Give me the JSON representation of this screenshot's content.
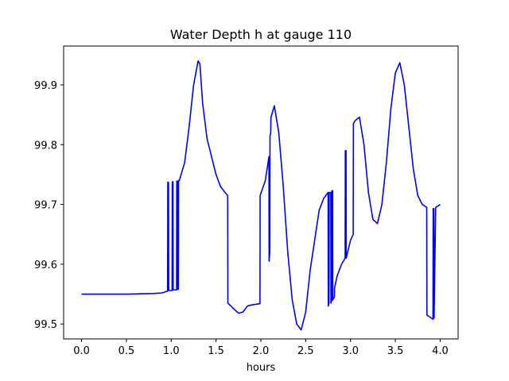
{
  "chart_data": {
    "type": "line",
    "title": "Water Depth h at gauge 110",
    "xlabel": "hours",
    "ylabel": "",
    "xlim": [
      -0.2,
      4.2
    ],
    "ylim": [
      99.475,
      99.965
    ],
    "xticks": [
      0.0,
      0.5,
      1.0,
      1.5,
      2.0,
      2.5,
      3.0,
      3.5,
      4.0
    ],
    "xtick_labels": [
      "0.0",
      "0.5",
      "1.0",
      "1.5",
      "2.0",
      "2.5",
      "3.0",
      "3.5",
      "4.0"
    ],
    "yticks": [
      99.5,
      99.6,
      99.7,
      99.8,
      99.9
    ],
    "ytick_labels": [
      "99.5",
      "99.6",
      "99.7",
      "99.8",
      "99.9"
    ],
    "grid": false,
    "colors": {
      "line": "#0000ff",
      "axes": "#000000",
      "background": "#ffffff"
    },
    "series": [
      {
        "x": [
          0.0,
          0.5,
          0.8,
          0.9,
          0.96,
          0.962,
          0.97,
          0.972,
          1.01,
          1.012,
          1.02,
          1.022,
          1.06,
          1.062,
          1.07,
          1.072,
          1.08,
          1.082,
          1.09,
          1.1,
          1.15,
          1.2,
          1.25,
          1.3,
          1.32,
          1.35,
          1.4,
          1.45,
          1.5,
          1.55,
          1.6,
          1.63,
          1.632,
          1.7,
          1.75,
          1.8,
          1.85,
          1.9,
          1.95,
          1.99,
          1.992,
          2.05,
          2.09,
          2.092,
          2.1,
          2.102,
          2.11,
          2.112,
          2.15,
          2.2,
          2.25,
          2.3,
          2.35,
          2.4,
          2.45,
          2.5,
          2.55,
          2.6,
          2.65,
          2.7,
          2.75,
          2.752,
          2.76,
          2.762,
          2.78,
          2.782,
          2.79,
          2.792,
          2.8,
          2.802,
          2.82,
          2.822,
          2.85,
          2.9,
          2.94,
          2.942,
          2.95,
          2.952,
          2.96,
          3.0,
          3.03,
          3.032,
          3.05,
          3.1,
          3.15,
          3.2,
          3.25,
          3.3,
          3.35,
          3.4,
          3.45,
          3.5,
          3.55,
          3.6,
          3.65,
          3.7,
          3.75,
          3.8,
          3.85,
          3.852,
          3.9,
          3.92,
          3.922,
          3.93,
          3.932,
          3.95,
          3.952,
          4.0
        ],
        "y": [
          99.55,
          99.55,
          99.551,
          99.552,
          99.555,
          99.737,
          99.737,
          99.556,
          99.556,
          99.738,
          99.738,
          99.557,
          99.557,
          99.739,
          99.739,
          99.558,
          99.558,
          99.74,
          99.74,
          99.745,
          99.77,
          99.83,
          99.9,
          99.94,
          99.935,
          99.87,
          99.81,
          99.78,
          99.75,
          99.73,
          99.72,
          99.715,
          99.535,
          99.525,
          99.518,
          99.52,
          99.53,
          99.532,
          99.533,
          99.534,
          99.715,
          99.74,
          99.78,
          99.605,
          99.62,
          99.815,
          99.82,
          99.845,
          99.865,
          99.82,
          99.73,
          99.62,
          99.54,
          99.5,
          99.49,
          99.52,
          99.59,
          99.64,
          99.69,
          99.71,
          99.72,
          99.53,
          99.535,
          99.72,
          99.72,
          99.535,
          99.54,
          99.723,
          99.723,
          99.54,
          99.545,
          99.56,
          99.58,
          99.6,
          99.61,
          99.79,
          99.79,
          99.61,
          99.615,
          99.64,
          99.65,
          99.835,
          99.84,
          99.846,
          99.8,
          99.72,
          99.675,
          99.668,
          99.7,
          99.77,
          99.86,
          99.92,
          99.937,
          99.9,
          99.83,
          99.76,
          99.715,
          99.7,
          99.695,
          99.515,
          99.51,
          99.508,
          99.693,
          99.693,
          99.51,
          99.695,
          99.695,
          99.7
        ]
      }
    ]
  }
}
